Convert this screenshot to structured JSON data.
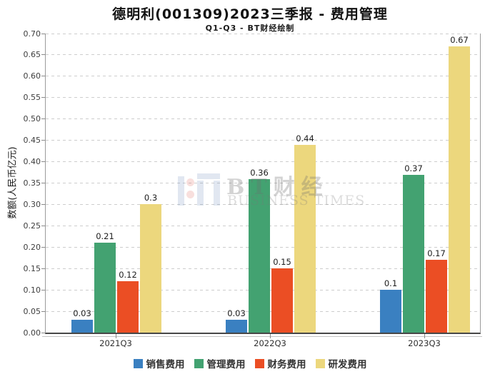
{
  "header": {
    "title": "德明利(001309)2023三季报 - 费用管理",
    "subtitle": "Q1-Q3 - BT财经绘制"
  },
  "watermark": {
    "logo": "bt-finance-logo",
    "text_cn": "BT财经",
    "text_en": "BUSINESS TIMES"
  },
  "chart_data": {
    "type": "bar",
    "title": "德明利(001309)2023三季报 - 费用管理",
    "subtitle": "Q1-Q3 - BT财经绘制",
    "xlabel": "",
    "ylabel": "数额(人民币亿元)",
    "categories": [
      "2021Q3",
      "2022Q3",
      "2023Q3"
    ],
    "series": [
      {
        "name": "销售费用",
        "color": "#3a80c1",
        "values": [
          0.03,
          0.03,
          0.1
        ],
        "labels": [
          "0.03",
          "0.03",
          "0.1"
        ]
      },
      {
        "name": "管理费用",
        "color": "#43a271",
        "values": [
          0.21,
          0.36,
          0.37
        ],
        "labels": [
          "0.21",
          "0.36",
          "0.37"
        ]
      },
      {
        "name": "财务费用",
        "color": "#eb4e24",
        "values": [
          0.12,
          0.15,
          0.17
        ],
        "labels": [
          "0.12",
          "0.15",
          "0.17"
        ]
      },
      {
        "name": "研发费用",
        "color": "#ecd77d",
        "values": [
          0.3,
          0.44,
          0.67
        ],
        "labels": [
          "0.3",
          "0.44",
          "0.67"
        ]
      }
    ],
    "ylim": [
      0,
      0.7
    ],
    "ytick_step": 0.05,
    "yticks": [
      "0.00",
      "0.05",
      "0.10",
      "0.15",
      "0.20",
      "0.25",
      "0.30",
      "0.35",
      "0.40",
      "0.45",
      "0.50",
      "0.55",
      "0.60",
      "0.65",
      "0.70"
    ],
    "grid": "horizontal-dashed",
    "legend_position": "bottom",
    "legend": [
      "销售费用",
      "管理费用",
      "财务费用",
      "研发费用"
    ]
  }
}
